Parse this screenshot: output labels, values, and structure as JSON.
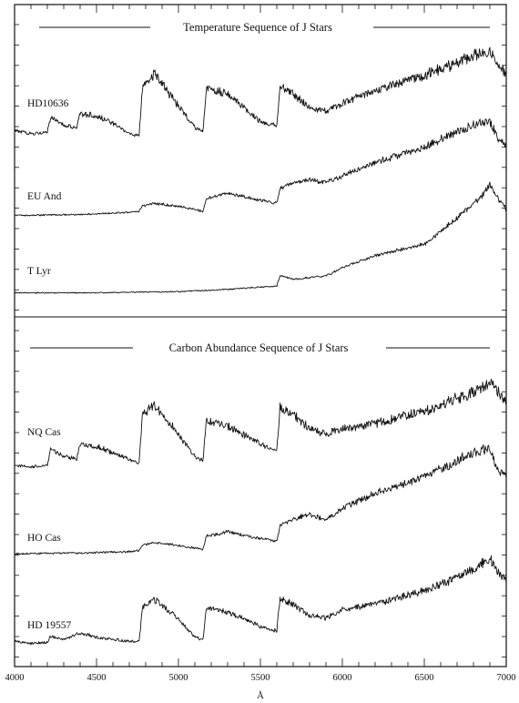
{
  "chart_data": {
    "type": "line",
    "xlim": [
      4000,
      7000
    ],
    "x_ticks": [
      4000,
      4500,
      5000,
      5500,
      6000,
      6500,
      7000
    ],
    "xlabel": "Å",
    "grid": false,
    "panels": [
      {
        "title": "Temperature Sequence of J Stars",
        "series": [
          {
            "name": "HD10636",
            "noise": 1.0,
            "x": [
              4000,
              4100,
              4200,
              4220,
              4300,
              4380,
              4400,
              4500,
              4600,
              4700,
              4760,
              4780,
              4850,
              5000,
              5100,
              5150,
              5170,
              5300,
              5500,
              5600,
              5620,
              5700,
              5800,
              5900,
              6000,
              6200,
              6500,
              6800,
              6900,
              6950,
              7000
            ],
            "y": [
              0.15,
              0.12,
              0.14,
              0.28,
              0.2,
              0.18,
              0.32,
              0.3,
              0.22,
              0.12,
              0.1,
              0.58,
              0.72,
              0.4,
              0.18,
              0.15,
              0.58,
              0.52,
              0.24,
              0.2,
              0.6,
              0.52,
              0.38,
              0.35,
              0.42,
              0.55,
              0.7,
              0.9,
              0.95,
              0.78,
              0.72
            ]
          },
          {
            "name": "EU And",
            "noise": 0.7,
            "x": [
              4000,
              4400,
              4700,
              4760,
              4780,
              4850,
              5000,
              5100,
              5150,
              5170,
              5300,
              5500,
              5600,
              5620,
              5700,
              5800,
              5900,
              6000,
              6200,
              6500,
              6800,
              6900,
              6950,
              7000
            ],
            "y": [
              0.03,
              0.04,
              0.06,
              0.07,
              0.12,
              0.15,
              0.12,
              0.09,
              0.07,
              0.2,
              0.25,
              0.18,
              0.15,
              0.3,
              0.35,
              0.38,
              0.35,
              0.42,
              0.55,
              0.7,
              0.92,
              0.95,
              0.78,
              0.72
            ]
          },
          {
            "name": "T Lyr",
            "noise": 0.45,
            "x": [
              4000,
              4500,
              5000,
              5300,
              5500,
              5600,
              5620,
              5700,
              5900,
              6000,
              6200,
              6500,
              6700,
              6850,
              6900,
              6950,
              7000
            ],
            "y": [
              0.02,
              0.02,
              0.03,
              0.05,
              0.07,
              0.08,
              0.17,
              0.14,
              0.17,
              0.24,
              0.35,
              0.45,
              0.68,
              0.88,
              0.98,
              0.86,
              0.76
            ]
          }
        ]
      },
      {
        "title": "Carbon Abundance Sequence of J Stars",
        "series": [
          {
            "name": "NQ Cas",
            "noise": 1.0,
            "x": [
              4000,
              4100,
              4200,
              4220,
              4300,
              4380,
              4400,
              4500,
              4600,
              4700,
              4760,
              4780,
              4850,
              5000,
              5100,
              5150,
              5170,
              5300,
              5500,
              5600,
              5620,
              5700,
              5800,
              5900,
              6000,
              6200,
              6500,
              6800,
              6900,
              6950,
              7000
            ],
            "y": [
              0.1,
              0.08,
              0.1,
              0.25,
              0.18,
              0.16,
              0.3,
              0.28,
              0.22,
              0.15,
              0.12,
              0.58,
              0.68,
              0.4,
              0.18,
              0.14,
              0.52,
              0.48,
              0.3,
              0.25,
              0.66,
              0.58,
              0.45,
              0.4,
              0.45,
              0.5,
              0.62,
              0.8,
              0.9,
              0.8,
              0.7
            ]
          },
          {
            "name": "HO Cas",
            "noise": 0.7,
            "x": [
              4000,
              4500,
              4700,
              4760,
              4780,
              4850,
              5000,
              5150,
              5170,
              5300,
              5500,
              5600,
              5620,
              5700,
              5800,
              5900,
              6000,
              6200,
              6500,
              6800,
              6900,
              6950,
              7000
            ],
            "y": [
              0.03,
              0.04,
              0.05,
              0.06,
              0.1,
              0.13,
              0.1,
              0.07,
              0.18,
              0.22,
              0.16,
              0.14,
              0.28,
              0.33,
              0.37,
              0.33,
              0.42,
              0.55,
              0.7,
              0.9,
              0.94,
              0.76,
              0.7
            ]
          },
          {
            "name": "HD 19557",
            "noise": 0.85,
            "x": [
              4000,
              4100,
              4200,
              4220,
              4300,
              4400,
              4500,
              4600,
              4700,
              4760,
              4780,
              4850,
              5000,
              5100,
              5150,
              5170,
              5300,
              5500,
              5600,
              5620,
              5700,
              5800,
              5900,
              6000,
              6200,
              6500,
              6800,
              6900,
              6950,
              7000
            ],
            "y": [
              0.1,
              0.08,
              0.09,
              0.15,
              0.12,
              0.18,
              0.14,
              0.12,
              0.1,
              0.1,
              0.42,
              0.5,
              0.32,
              0.14,
              0.12,
              0.42,
              0.38,
              0.24,
              0.2,
              0.5,
              0.45,
              0.35,
              0.32,
              0.4,
              0.46,
              0.58,
              0.78,
              0.9,
              0.75,
              0.68
            ]
          }
        ]
      }
    ]
  }
}
